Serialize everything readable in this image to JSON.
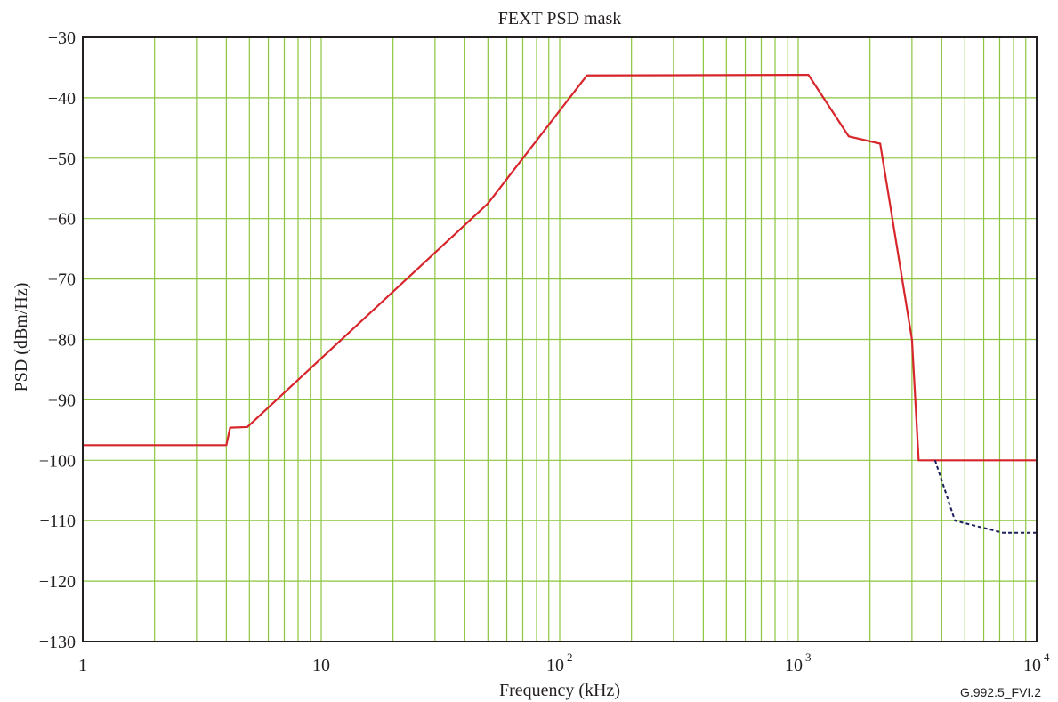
{
  "chart_data": {
    "type": "line",
    "title": "FEXT PSD mask",
    "xlabel": "Frequency (kHz)",
    "ylabel": "PSD (dBm/Hz)",
    "xscale": "log",
    "xlim": [
      1,
      10000
    ],
    "ylim": [
      -130,
      -30
    ],
    "grid": true,
    "legend": "none",
    "xticks": [
      {
        "value": 1,
        "label": "1",
        "sup": ""
      },
      {
        "value": 10,
        "label": "10",
        "sup": ""
      },
      {
        "value": 100,
        "label": "10",
        "sup": "2"
      },
      {
        "value": 1000,
        "label": "10",
        "sup": "3"
      },
      {
        "value": 10000,
        "label": "10",
        "sup": "4"
      }
    ],
    "yticks": [
      {
        "value": -30,
        "label": "−30"
      },
      {
        "value": -40,
        "label": "−40"
      },
      {
        "value": -50,
        "label": "−50"
      },
      {
        "value": -60,
        "label": "−60"
      },
      {
        "value": -70,
        "label": "−70"
      },
      {
        "value": -80,
        "label": "−80"
      },
      {
        "value": -90,
        "label": "−90"
      },
      {
        "value": -100,
        "label": "−100"
      },
      {
        "value": -110,
        "label": "−110"
      },
      {
        "value": -120,
        "label": "−120"
      },
      {
        "value": -130,
        "label": "−130"
      }
    ],
    "series": [
      {
        "color": "#d7262b",
        "dash": "solid",
        "points": [
          {
            "x": 1,
            "y": -97.5
          },
          {
            "x": 4,
            "y": -97.5
          },
          {
            "x": 4.15,
            "y": -94.6
          },
          {
            "x": 4.9,
            "y": -94.5
          },
          {
            "x": 50,
            "y": -57.5
          },
          {
            "x": 130,
            "y": -36.3
          },
          {
            "x": 1104,
            "y": -36.2
          },
          {
            "x": 1630,
            "y": -46.4
          },
          {
            "x": 2208,
            "y": -47.6
          },
          {
            "x": 3000,
            "y": -80
          },
          {
            "x": 3200,
            "y": -100
          },
          {
            "x": 10000,
            "y": -100
          }
        ]
      },
      {
        "color": "#1b1f5c",
        "dash": "dashed",
        "points": [
          {
            "x": 3750,
            "y": -100
          },
          {
            "x": 4545,
            "y": -110
          },
          {
            "x": 7225,
            "y": -112
          },
          {
            "x": 10000,
            "y": -112
          }
        ]
      }
    ]
  },
  "colors": {
    "grid": "#8cc63f",
    "axis": "#231f20",
    "text": "#231f20"
  },
  "figure_id": "G.992.5_FVI.2"
}
